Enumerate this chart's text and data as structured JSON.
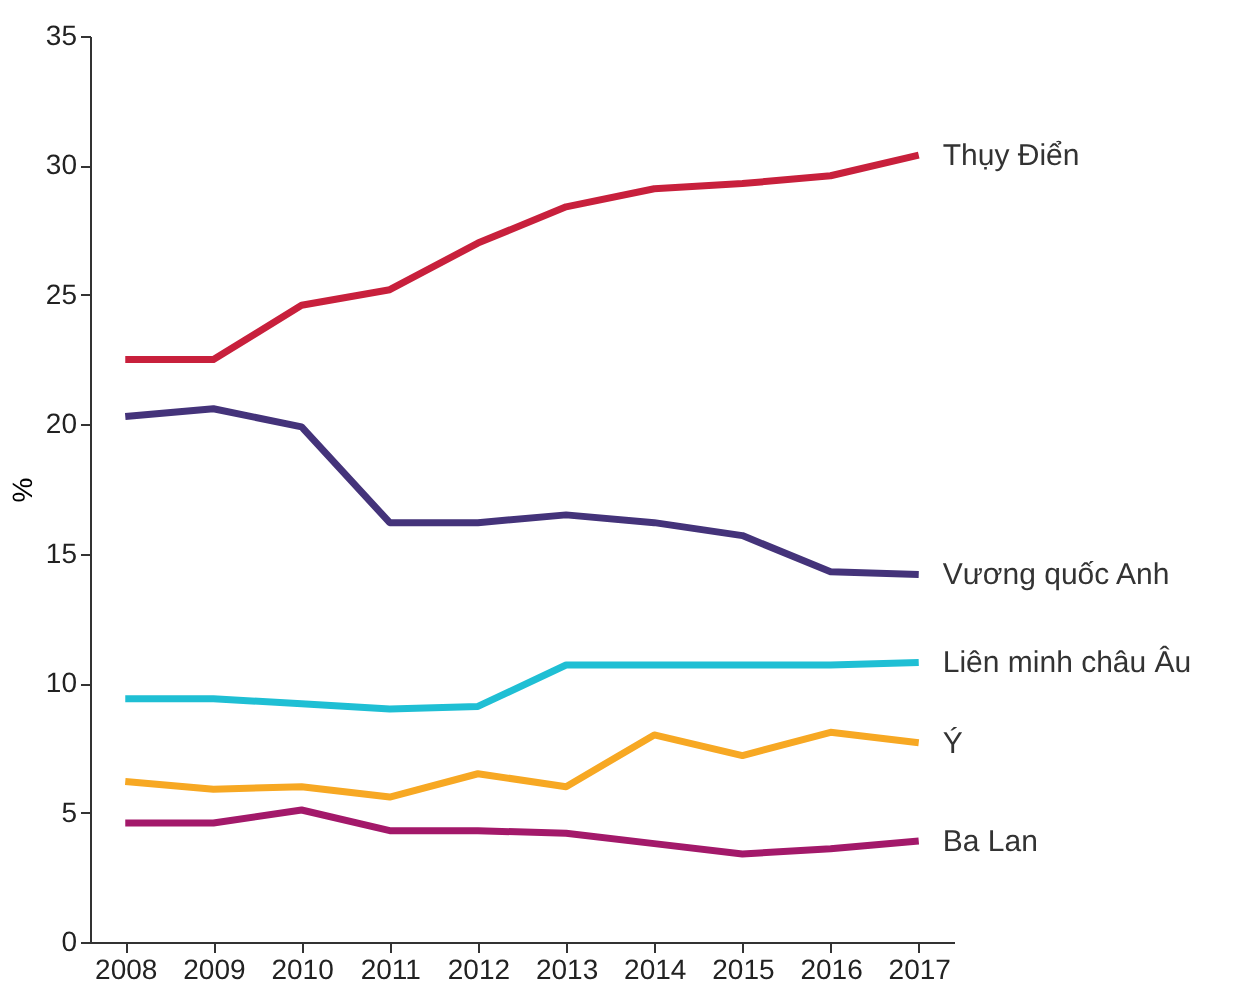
{
  "chart_data": {
    "type": "line",
    "ylabel": "%",
    "categories": [
      "2008",
      "2009",
      "2010",
      "2011",
      "2012",
      "2013",
      "2014",
      "2015",
      "2016",
      "2017"
    ],
    "ylim": [
      0,
      35
    ],
    "yticks": [
      0,
      5,
      10,
      15,
      20,
      25,
      30,
      35
    ],
    "line_style": "solid",
    "series": [
      {
        "name": "Thụy Điển",
        "color": "#c8203c",
        "values": [
          22.5,
          22.5,
          24.6,
          25.2,
          27.0,
          28.4,
          29.1,
          29.3,
          29.6,
          30.4
        ]
      },
      {
        "name": "Vương quốc Anh",
        "color": "#44337a",
        "values": [
          20.3,
          20.6,
          19.9,
          16.2,
          16.2,
          16.5,
          16.2,
          15.7,
          14.3,
          14.2
        ]
      },
      {
        "name": "Liên minh châu Âu",
        "color": "#1fbfd4",
        "values": [
          9.4,
          9.4,
          9.2,
          9.0,
          9.1,
          10.7,
          10.7,
          10.7,
          10.7,
          10.8
        ]
      },
      {
        "name": "Ý",
        "color": "#f7a823",
        "values": [
          6.2,
          5.9,
          6.0,
          5.6,
          6.5,
          6.0,
          8.0,
          7.2,
          8.1,
          7.7
        ]
      },
      {
        "name": "Ba Lan",
        "color": "#a3196a",
        "values": [
          4.6,
          4.6,
          5.1,
          4.3,
          4.3,
          4.2,
          3.8,
          3.4,
          3.6,
          3.9
        ]
      }
    ]
  }
}
